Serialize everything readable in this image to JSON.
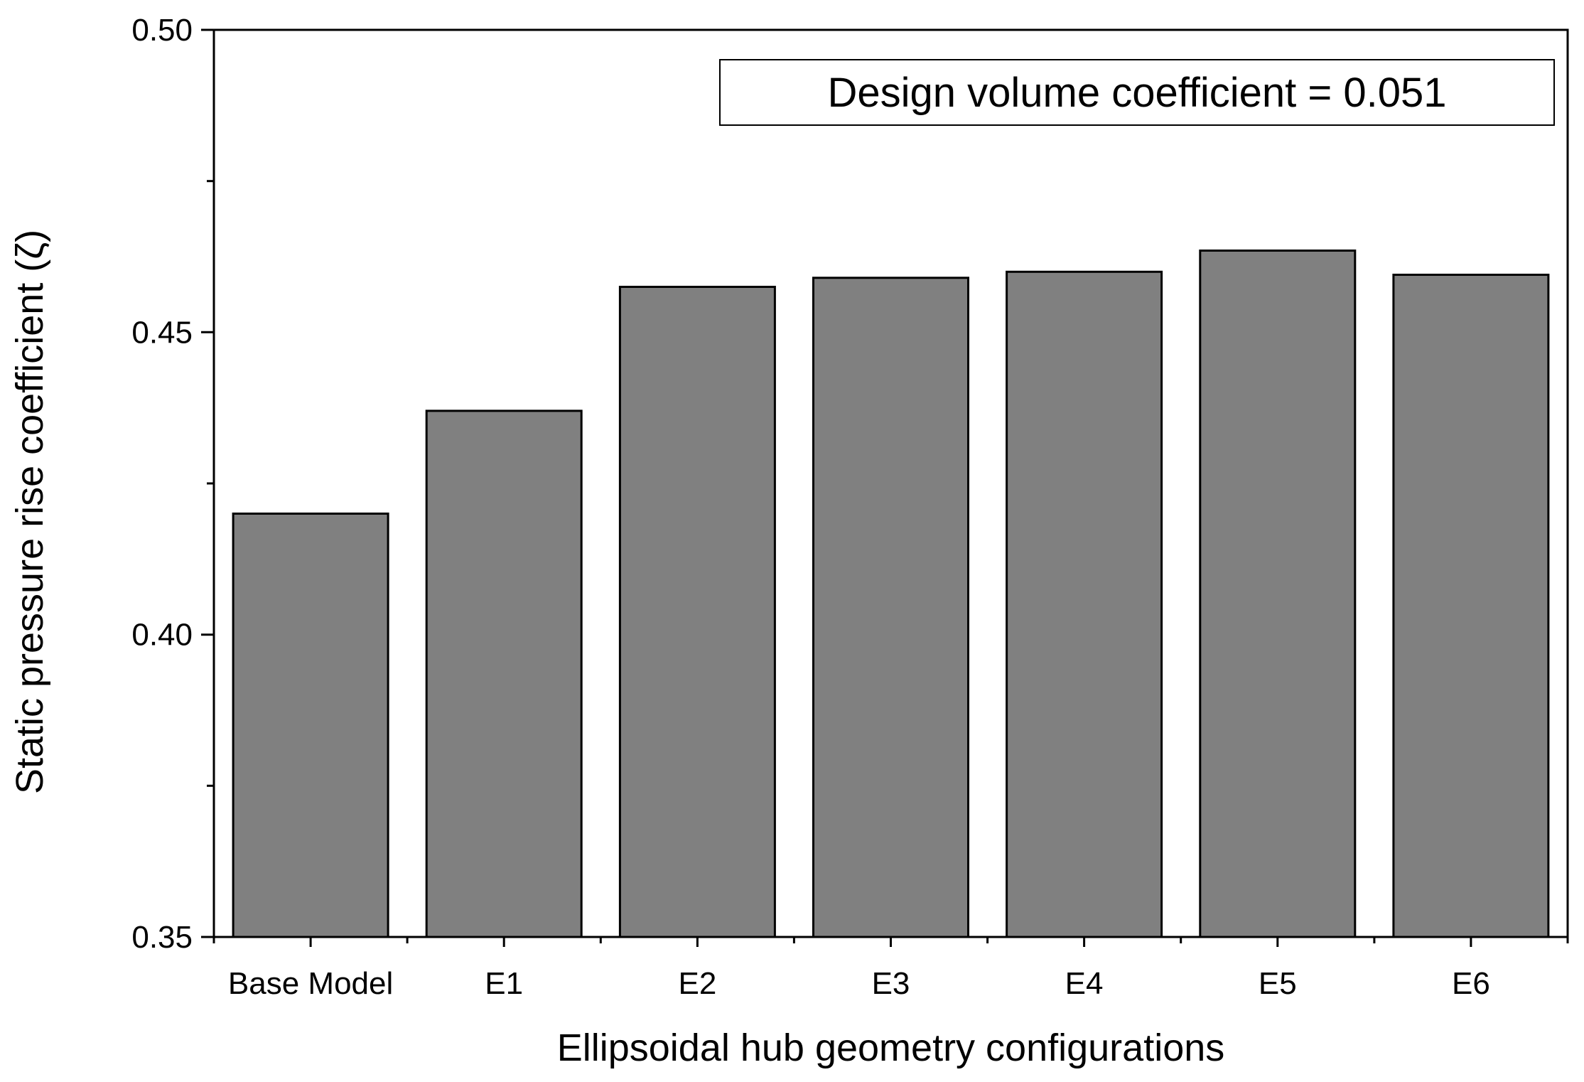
{
  "chart_data": {
    "type": "bar",
    "categories": [
      "Base Model",
      "E1",
      "E2",
      "E3",
      "E4",
      "E5",
      "E6"
    ],
    "series": [
      {
        "values": [
          0.42,
          0.437,
          0.4575,
          0.459,
          0.46,
          0.4635,
          0.4595
        ],
        "color": "#808080"
      }
    ],
    "xlabel": "Ellipsoidal hub geometry configurations",
    "ylabel": "Static pressure rise coefficient (ζ)",
    "ylim": [
      0.35,
      0.5
    ],
    "yticks_major": [
      "0.35",
      "0.40",
      "0.45",
      "0.50"
    ],
    "yticks_major_values": [
      0.35,
      0.4,
      0.45,
      0.5
    ],
    "yticks_minor_values": [
      0.375,
      0.425,
      0.475
    ],
    "annotation": "Design volume coefficient = 0.051",
    "grid": false,
    "bar_color": "#808080",
    "bar_edge_color": "#000000"
  }
}
